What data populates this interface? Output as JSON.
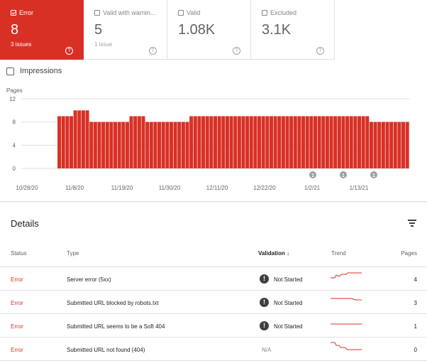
{
  "cards": [
    {
      "label": "Error",
      "value": "8",
      "sub": "3 issues",
      "active": true
    },
    {
      "label": "Valid with warnin...",
      "value": "5",
      "sub": "1 issue",
      "active": false
    },
    {
      "label": "Valid",
      "value": "1.08K",
      "sub": "",
      "active": false
    },
    {
      "label": "Excluded",
      "value": "3.1K",
      "sub": "",
      "active": false
    }
  ],
  "impressions_label": "Impressions",
  "chart_data": {
    "type": "bar",
    "ylabel": "Pages",
    "yticks": [
      "12",
      "8",
      "4",
      "0"
    ],
    "ylim": [
      0,
      12
    ],
    "xticks": [
      "10/28/20",
      "11/8/20",
      "11/19/20",
      "11/30/20",
      "12/11/20",
      "12/22/20",
      "1/2/21",
      "1/13/21"
    ],
    "values": [
      0,
      0,
      0,
      0,
      0,
      0,
      0,
      0,
      0,
      9,
      9,
      9,
      9,
      10,
      10,
      10,
      10,
      8,
      8,
      8,
      8,
      8,
      8,
      8,
      8,
      8,
      8,
      9,
      9,
      9,
      9,
      8,
      8,
      8,
      8,
      8,
      8,
      8,
      8,
      8,
      8,
      8,
      9,
      9,
      9,
      9,
      9,
      9,
      9,
      9,
      9,
      9,
      9,
      9,
      9,
      9,
      9,
      9,
      9,
      9,
      9,
      9,
      9,
      9,
      9,
      9,
      9,
      9,
      9,
      9,
      9,
      9,
      9,
      9,
      9,
      9,
      9,
      9,
      9,
      9,
      9,
      9,
      9,
      9,
      9,
      9,
      9,
      8,
      8,
      8,
      8,
      8,
      8,
      8,
      8,
      8,
      8
    ],
    "annotation_symbol": "1",
    "bar_color": "#d93025"
  },
  "details": {
    "title": "Details",
    "headers": {
      "status": "Status",
      "type": "Type",
      "validation": "Validation",
      "trend": "Trend",
      "pages": "Pages"
    },
    "rows": [
      {
        "status": "Error",
        "type": "Server error (5xx)",
        "validation": "Not Started",
        "pages": "4"
      },
      {
        "status": "Error",
        "type": "Submitted URL blocked by robots.txt",
        "validation": "Not Started",
        "pages": "3"
      },
      {
        "status": "Error",
        "type": "Submitted URL seems to be a Soft 404",
        "validation": "Not Started",
        "pages": "1"
      },
      {
        "status": "Error",
        "type": "Submitted URL not found (404)",
        "validation": "N/A",
        "pages": "0"
      }
    ]
  }
}
